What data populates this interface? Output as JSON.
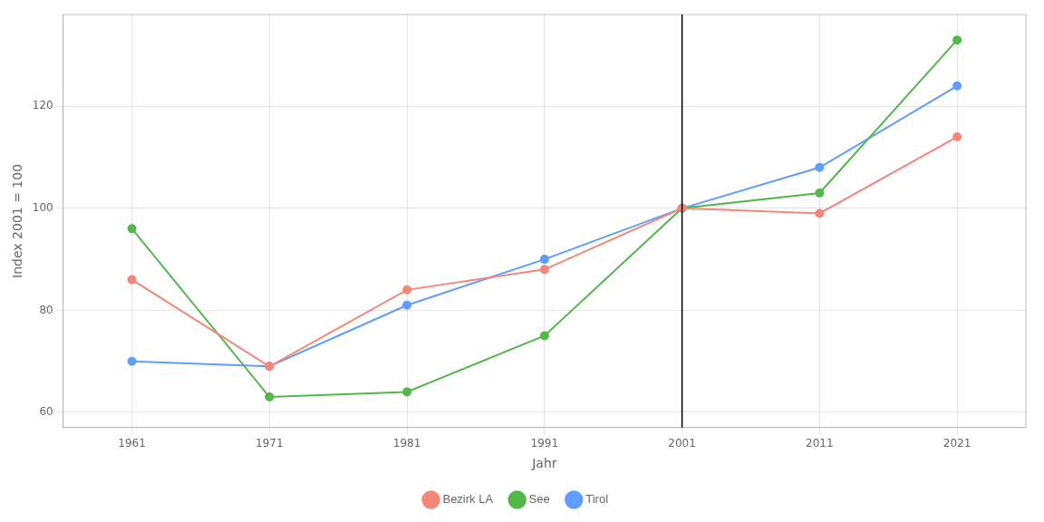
{
  "chart_data": {
    "type": "line",
    "x": [
      1961,
      1971,
      1981,
      1991,
      2001,
      2011,
      2021
    ],
    "series": [
      {
        "name": "Bezirk LA",
        "color": "#F4877A",
        "values": [
          86,
          69,
          84,
          88,
          100,
          99,
          114
        ]
      },
      {
        "name": "See",
        "color": "#53B74C",
        "values": [
          96,
          63,
          64,
          75,
          100,
          103,
          133
        ]
      },
      {
        "name": "Tirol",
        "color": "#619CFF",
        "values": [
          70,
          69,
          81,
          90,
          100,
          108,
          124
        ]
      }
    ],
    "xlabel": "Jahr",
    "ylabel": "Index 2001 = 100",
    "xlim": [
      1956,
      2026
    ],
    "xticks": [
      1961,
      1971,
      1981,
      1991,
      2001,
      2011,
      2021
    ],
    "ylim": [
      57,
      138
    ],
    "yticks": [
      60,
      80,
      100,
      120
    ],
    "vlines": [
      2001
    ],
    "marker": "circle",
    "grid": true,
    "legend": "bottom"
  }
}
